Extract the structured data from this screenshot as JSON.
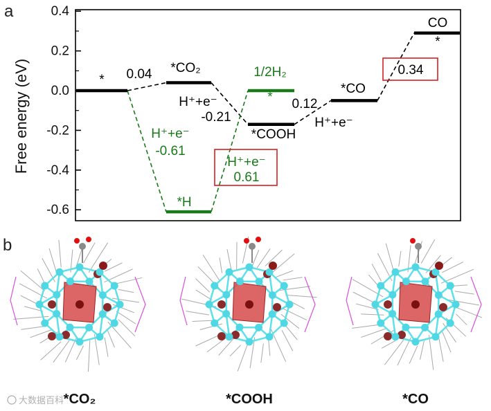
{
  "panel_labels": {
    "a": "a",
    "b": "b"
  },
  "chart_data": {
    "type": "line",
    "subtype": "free-energy-diagram",
    "ylabel": "Free energy (eV)",
    "xlabel": "",
    "ylim": [
      -0.65,
      0.4
    ],
    "yticks": [
      -0.6,
      -0.4,
      -0.2,
      0.0,
      0.2,
      0.4
    ],
    "ytick_labels": [
      "-0.6",
      "-0.4",
      "-0.2",
      "0.0",
      "0.2",
      "0.4"
    ],
    "grid": false,
    "colors": {
      "main": "#000000",
      "her": "#1a7a1a",
      "box": "#d42020"
    },
    "states": [
      {
        "id": "s0",
        "label": "*",
        "energy": 0.0,
        "color": "main"
      },
      {
        "id": "co2",
        "label": "*CO₂",
        "energy": 0.04,
        "color": "main"
      },
      {
        "id": "cooh",
        "label": "*COOH",
        "energy": -0.17,
        "color": "main"
      },
      {
        "id": "co",
        "label": "*CO",
        "energy": -0.05,
        "color": "main"
      },
      {
        "id": "cog",
        "label": "CO",
        "sublabel": "*",
        "energy": 0.29,
        "color": "main"
      },
      {
        "id": "h",
        "label": "*H",
        "energy": -0.61,
        "color": "her"
      },
      {
        "id": "h2",
        "label": "1/2H₂",
        "sublabel": "*",
        "energy": 0.0,
        "color": "her"
      }
    ],
    "steps": [
      {
        "from": "s0",
        "to": "co2",
        "value": "0.04",
        "color": "main"
      },
      {
        "from": "co2",
        "to": "cooh",
        "value": "-0.21",
        "proton": "H⁺+e⁻",
        "color": "main"
      },
      {
        "from": "cooh",
        "to": "co",
        "value": "0.12",
        "proton": "H⁺+e⁻",
        "color": "main"
      },
      {
        "from": "co",
        "to": "cog",
        "value": "0.34",
        "boxed": true,
        "color": "main"
      },
      {
        "from": "s0",
        "to": "h",
        "value": "-0.61",
        "proton": "H⁺+e⁻",
        "color": "her"
      },
      {
        "from": "h",
        "to": "h2",
        "value": "0.61",
        "proton": "H⁺+e⁻",
        "boxed": true,
        "color": "her"
      }
    ]
  },
  "structures": [
    {
      "caption": "*CO₂"
    },
    {
      "caption": "*COOH"
    },
    {
      "caption": "*CO"
    }
  ],
  "watermark": "大数据百科"
}
